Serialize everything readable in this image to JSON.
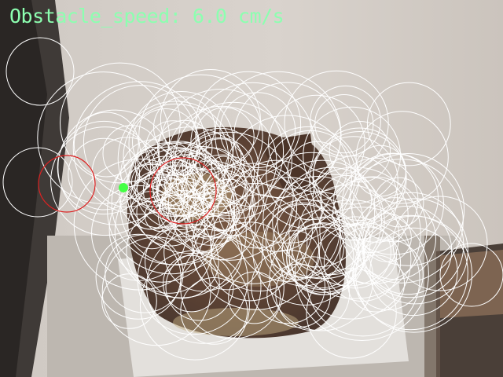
{
  "hud": {
    "speed_label": "Obstacle_speed: 6.0 cm/s"
  },
  "colors": {
    "hud_text": "#8cffb0",
    "tracked_circles": "#ffffff",
    "obstacle_circles": "#dd2222",
    "center_marker": "#44ff44"
  }
}
